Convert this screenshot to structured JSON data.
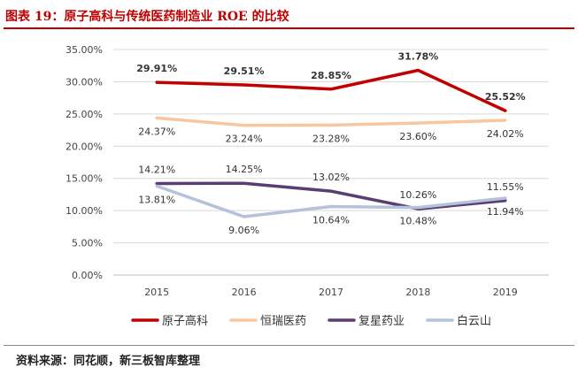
{
  "title": "图表 19：原子高科与传统医药制造业 ROE 的比较",
  "source": "资料来源：同花顺，新三板智库整理",
  "colors": {
    "title": "#c00000",
    "grid": "#d9d9d9",
    "axis_text": "#444444",
    "label_text": "#333333"
  },
  "chart_data": {
    "type": "line",
    "title": "",
    "xlabel": "",
    "ylabel": "",
    "categories": [
      "2015",
      "2016",
      "2017",
      "2018",
      "2019"
    ],
    "ylim": [
      0,
      35
    ],
    "yticks": [
      "0.00%",
      "5.00%",
      "10.00%",
      "15.00%",
      "20.00%",
      "25.00%",
      "30.00%",
      "35.00%"
    ],
    "grid": true,
    "legend_position": "bottom",
    "series": [
      {
        "name": "原子高科",
        "color": "#c00000",
        "bold_labels": true,
        "label_pos": "above",
        "values": [
          29.91,
          29.51,
          28.85,
          31.78,
          25.52
        ],
        "labels": [
          "29.91%",
          "29.51%",
          "28.85%",
          "31.78%",
          "25.52%"
        ]
      },
      {
        "name": "恒瑞医药",
        "color": "#f8c7a0",
        "bold_labels": false,
        "label_pos": "below",
        "values": [
          24.37,
          23.24,
          23.28,
          23.6,
          24.02
        ],
        "labels": [
          "24.37%",
          "23.24%",
          "23.28%",
          "23.60%",
          "24.02%"
        ]
      },
      {
        "name": "复星药业",
        "color": "#5a3d73",
        "bold_labels": false,
        "label_pos": "above",
        "values": [
          14.21,
          14.25,
          13.02,
          10.26,
          11.55
        ],
        "labels": [
          "14.21%",
          "14.25%",
          "13.02%",
          "10.26%",
          "11.55%"
        ]
      },
      {
        "name": "白云山",
        "color": "#b4c3d9",
        "bold_labels": false,
        "label_pos": "below",
        "values": [
          13.81,
          9.06,
          10.64,
          10.48,
          11.94
        ],
        "labels": [
          "13.81%",
          "9.06%",
          "10.64%",
          "10.48%",
          "11.94%"
        ]
      }
    ]
  }
}
